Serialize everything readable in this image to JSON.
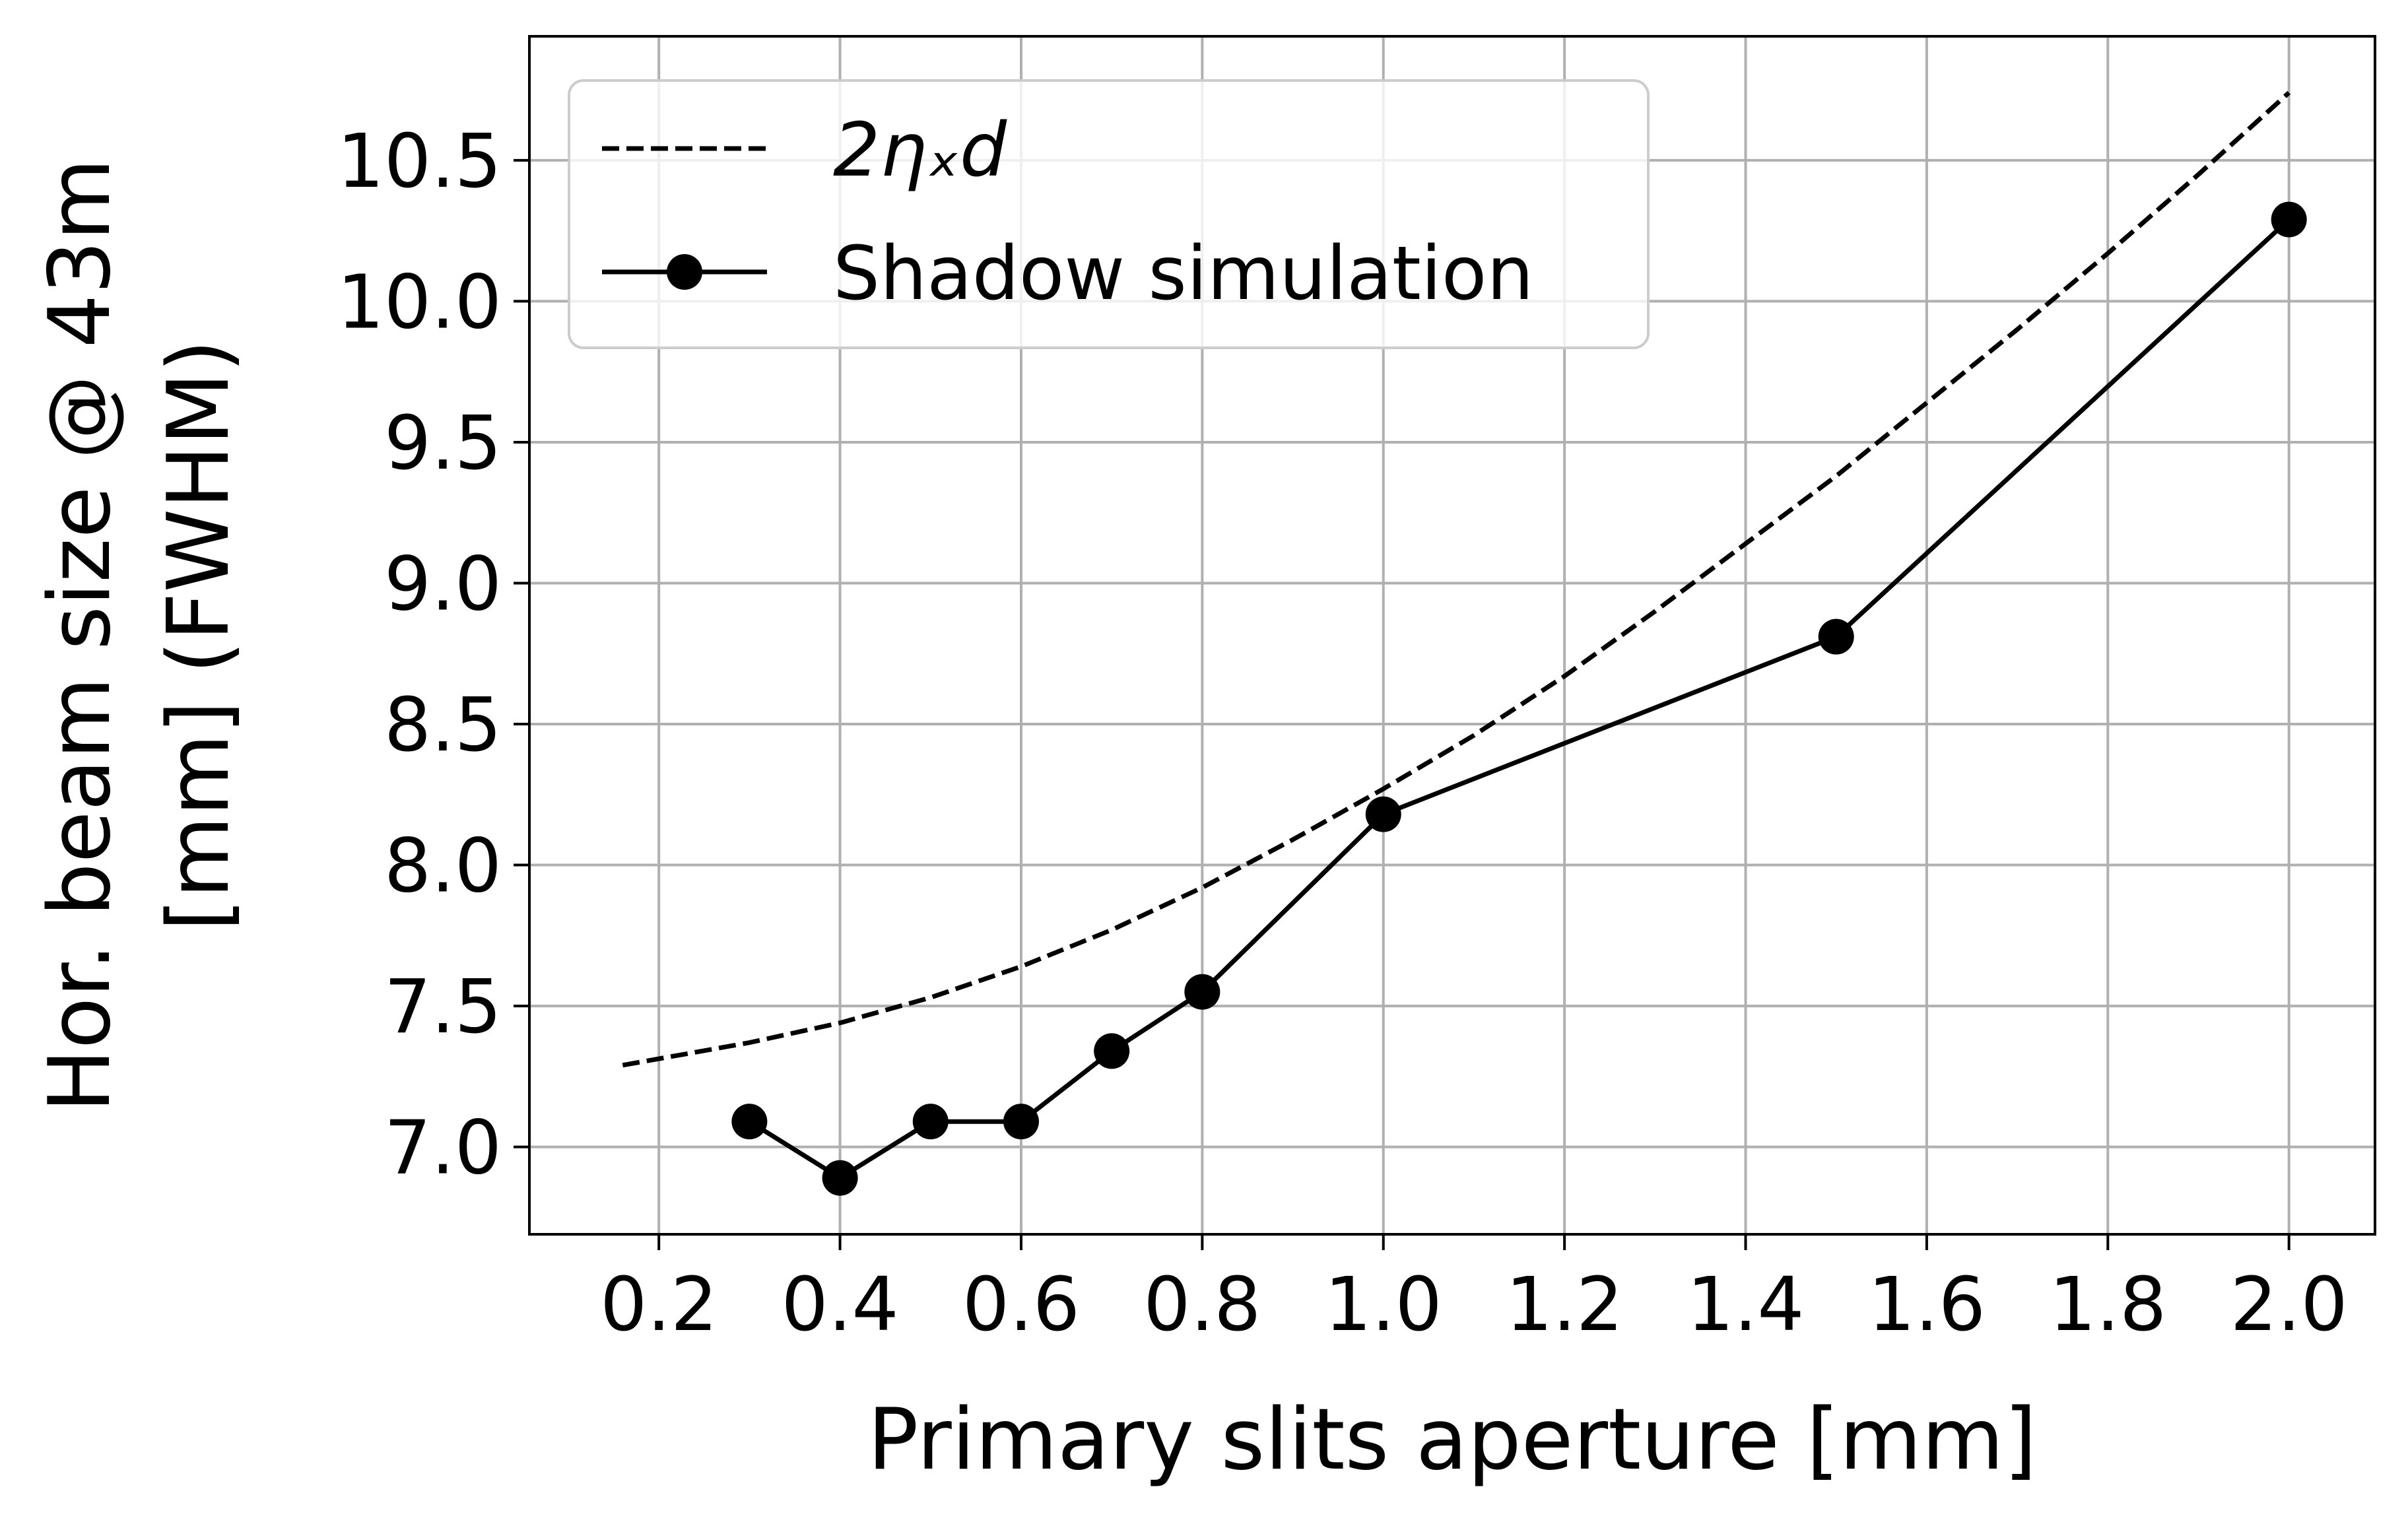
{
  "chart_data": {
    "type": "line",
    "title": "",
    "xlabel": "Primary slits aperture [mm]",
    "ylabel_lines": [
      "Hor. beam size @ 43m",
      "[mm] (FWHM)"
    ],
    "xlim": [
      0.057,
      2.095
    ],
    "ylim": [
      6.69,
      10.94
    ],
    "x_ticks": [
      0.2,
      0.4,
      0.6,
      0.8,
      1.0,
      1.2,
      1.4,
      1.6,
      1.8,
      2.0
    ],
    "x_tick_labels": [
      "0.2",
      "0.4",
      "0.6",
      "0.8",
      "1.0",
      "1.2",
      "1.4",
      "1.6",
      "1.8",
      "2.0"
    ],
    "y_ticks": [
      7.0,
      7.5,
      8.0,
      8.5,
      9.0,
      9.5,
      10.0,
      10.5
    ],
    "y_tick_labels": [
      "7.0",
      "7.5",
      "8.0",
      "8.5",
      "9.0",
      "9.5",
      "10.0",
      "10.5"
    ],
    "grid": true,
    "legend_position": "top-left",
    "series": [
      {
        "name": "2ηₓd",
        "style": "dashed",
        "color": "#000000",
        "markers": false,
        "x": [
          0.16,
          0.3,
          0.4,
          0.5,
          0.6,
          0.7,
          0.8,
          0.9,
          1.0,
          1.1,
          1.2,
          1.3,
          1.4,
          1.5,
          1.6,
          1.7,
          1.8,
          1.9,
          2.0
        ],
        "y": [
          7.29,
          7.37,
          7.44,
          7.53,
          7.64,
          7.77,
          7.92,
          8.09,
          8.27,
          8.46,
          8.67,
          8.9,
          9.14,
          9.38,
          9.64,
          9.9,
          10.17,
          10.45,
          10.74
        ]
      },
      {
        "name": "Shadow simulation",
        "style": "solid",
        "color": "#000000",
        "markers": true,
        "x": [
          0.3,
          0.4,
          0.5,
          0.6,
          0.7,
          0.8,
          1.0,
          1.5,
          2.0
        ],
        "y": [
          7.09,
          6.89,
          7.09,
          7.09,
          7.34,
          7.55,
          8.18,
          8.81,
          10.29
        ]
      }
    ]
  }
}
